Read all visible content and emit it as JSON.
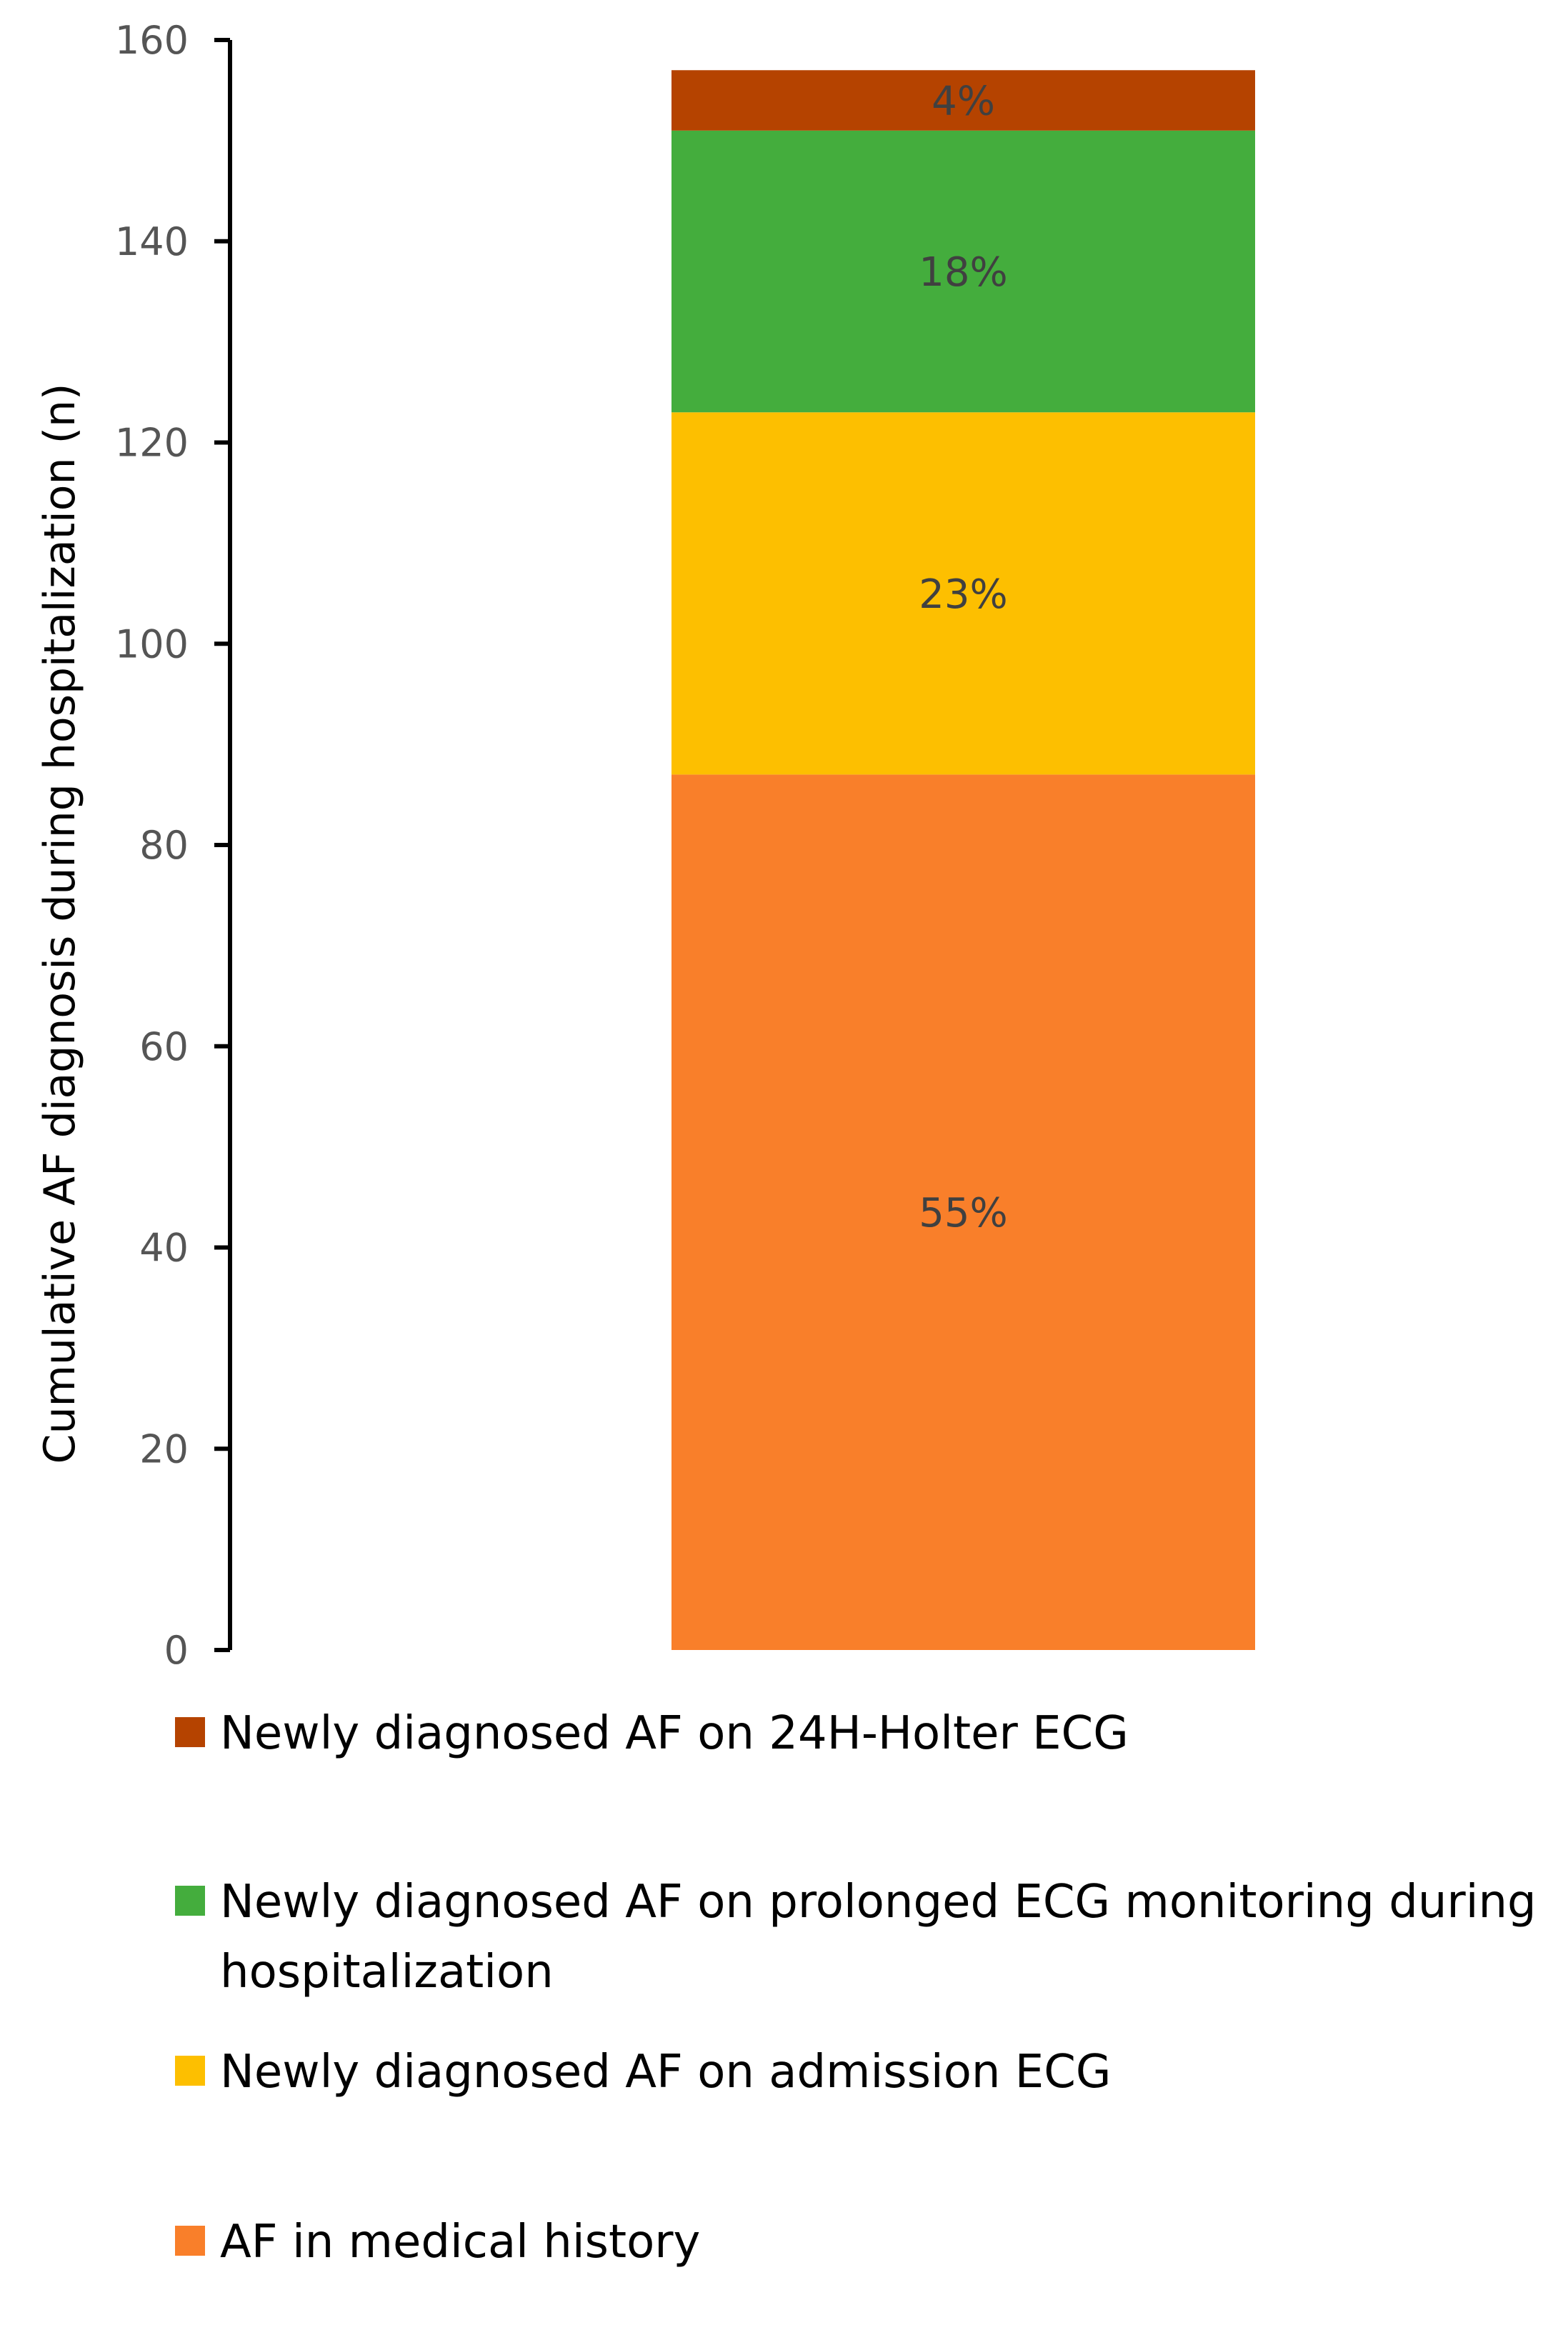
{
  "chart_data": {
    "type": "bar",
    "stacked": true,
    "orientation": "vertical",
    "title": "",
    "xlabel": "",
    "ylabel": "Cumulative AF diagnosis during hospitalization (n)",
    "ylim": [
      0,
      160
    ],
    "yticks": [
      "0",
      "20",
      "40",
      "60",
      "80",
      "100",
      "120",
      "140",
      "160"
    ],
    "grid": false,
    "legend_position": "bottom",
    "series": [
      {
        "name": "AF in medical history",
        "value": 87,
        "label": "55%",
        "color": "#F97F2A"
      },
      {
        "name": "Newly diagnosed AF on admission ECG",
        "value": 36,
        "label": "23%",
        "color": "#FDBF00"
      },
      {
        "name": "Newly diagnosed AF on prolonged ECG monitoring during hospitalization",
        "legend_lines": [
          "Newly diagnosed AF on prolonged ECG monitoring during",
          "hospitalization"
        ],
        "value": 28,
        "label": "18%",
        "color": "#44AD3D"
      },
      {
        "name": "Newly diagnosed AF on 24H-Holter ECG",
        "value": 6,
        "label": "4%",
        "color": "#B54300"
      }
    ],
    "legend_order": [
      3,
      2,
      1,
      0
    ]
  }
}
